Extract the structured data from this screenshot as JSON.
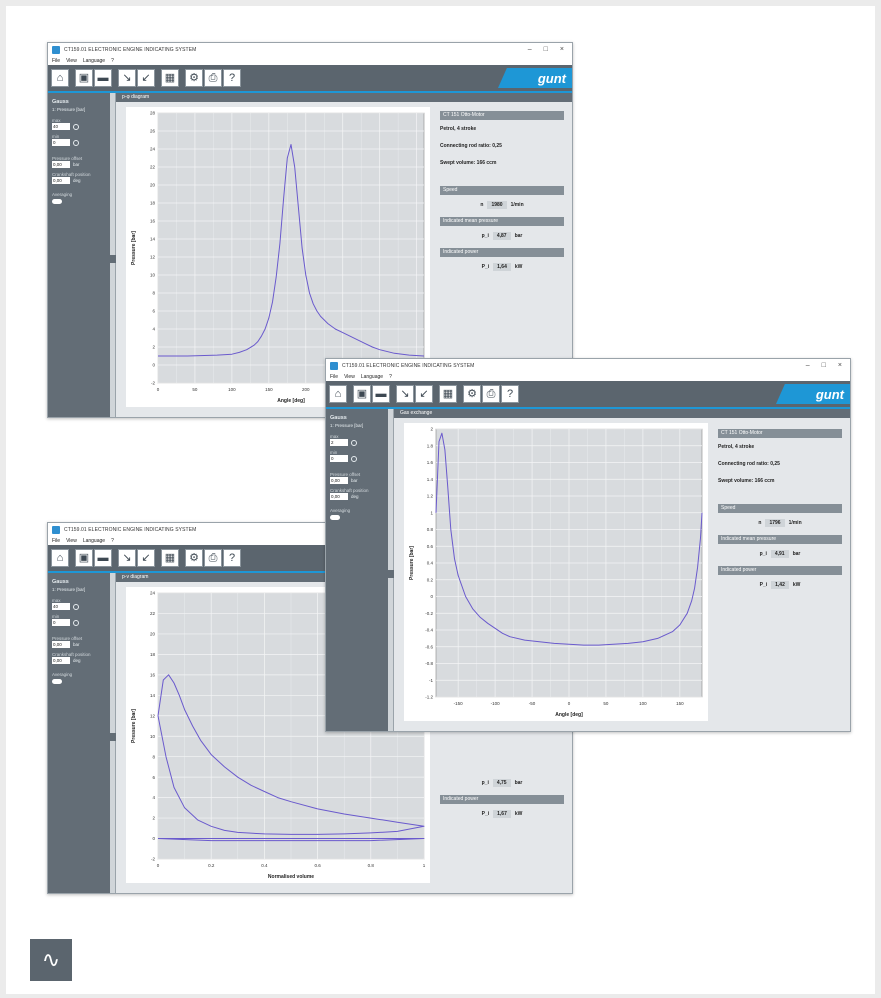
{
  "app": {
    "title": "CT159.01 ELECTRONIC ENGINE INDICATING SYSTEM",
    "menu": [
      "File",
      "View",
      "Language",
      "?"
    ],
    "logo": "gunt",
    "accent_color": "#1e97d6",
    "toolbar_color": "#5b656e",
    "trace_color": "#6a5acd"
  },
  "toolbar_icons": [
    "home-icon",
    "save-icon",
    "open-folder-icon",
    "pressure-sensor-icon",
    "tdc-sensor-icon",
    "grid-table-icon",
    "settings-icon",
    "print-icon",
    "help-icon"
  ],
  "windows": [
    {
      "id": "pphi",
      "section_title": "p-φ diagram",
      "sidebar": {
        "title": "Gauss",
        "channel": "1: Pressure [bar]",
        "min_label": "max",
        "min_value": "40",
        "max_label": "min",
        "max_value": "0",
        "offset_label": "Pressure offset",
        "offset_value": "0,00",
        "offset_unit": "bar",
        "crank_label": "Crankshaft position",
        "crank_value": "0,00",
        "crank_unit": "deg",
        "averaging_label": "Averaging"
      },
      "info": {
        "header": "CT 151 Otto-Motor",
        "engine": "Petrol, 4 stroke",
        "rod_ratio": "Connecting rod ratio: 0,25",
        "swept_volume": "Swept volume: 166 ccm",
        "speed_header": "Speed",
        "speed_symbol": "n",
        "speed_value": "1980",
        "speed_unit": "1/min",
        "imp_header": "Indicated mean pressure",
        "imp_symbol": "p_i",
        "imp_value": "4,87",
        "imp_unit": "bar",
        "power_header": "Indicated power",
        "power_symbol": "P_i",
        "power_value": "1,64",
        "power_unit": "kW"
      }
    },
    {
      "id": "gas",
      "section_title": "Gas exchange",
      "sidebar": {
        "title": "Gauss",
        "channel": "1: Pressure [bar]",
        "min_label": "max",
        "min_value": "2",
        "max_label": "min",
        "max_value": "0",
        "offset_label": "Pressure offset",
        "offset_value": "0,00",
        "offset_unit": "bar",
        "crank_label": "Crankshaft position",
        "crank_value": "0,00",
        "crank_unit": "deg",
        "averaging_label": "Averaging"
      },
      "info": {
        "header": "CT 151 Otto-Motor",
        "engine": "Petrol, 4 stroke",
        "rod_ratio": "Connecting rod ratio: 0,25",
        "swept_volume": "Swept volume: 166 ccm",
        "speed_header": "Speed",
        "speed_symbol": "n",
        "speed_value": "1796",
        "speed_unit": "1/min",
        "imp_header": "Indicated mean pressure",
        "imp_symbol": "p_i",
        "imp_value": "4,91",
        "imp_unit": "bar",
        "power_header": "Indicated power",
        "power_symbol": "P_i",
        "power_value": "1,42",
        "power_unit": "kW"
      }
    },
    {
      "id": "pv",
      "section_title": "p-v diagram",
      "sidebar": {
        "title": "Gauss",
        "channel": "1: Pressure [bar]",
        "min_label": "max",
        "min_value": "40",
        "max_label": "min",
        "max_value": "0",
        "offset_label": "Pressure offset",
        "offset_value": "0,00",
        "offset_unit": "bar",
        "crank_label": "Crankshaft position",
        "crank_value": "0,00",
        "crank_unit": "deg",
        "averaging_label": "Averaging"
      },
      "info": {
        "imp_symbol": "p_i",
        "imp_value": "4,75",
        "imp_unit": "bar",
        "power_header": "Indicated power",
        "power_symbol": "P_i",
        "power_value": "1,67",
        "power_unit": "kW"
      }
    }
  ],
  "chart_data": [
    {
      "type": "line",
      "title": "p-φ diagram",
      "xlabel": "Angle [deg]",
      "ylabel": "Pressure [bar]",
      "xlim": [
        0,
        360
      ],
      "ylim": [
        -2,
        28
      ],
      "grid": true,
      "series": [
        {
          "x": [
            0,
            40,
            80,
            100,
            110,
            120,
            130,
            135,
            140,
            145,
            150,
            155,
            160,
            165,
            170,
            175,
            180,
            185,
            190,
            195,
            200,
            205,
            210,
            215,
            220,
            230,
            240,
            250,
            260,
            270,
            280,
            290,
            300,
            320,
            340,
            360
          ],
          "y": [
            1.0,
            1.0,
            1.1,
            1.2,
            1.4,
            1.7,
            2.2,
            2.6,
            3.2,
            4.0,
            5.2,
            7.0,
            9.8,
            13.5,
            18.5,
            23.0,
            24.5,
            22.0,
            17.5,
            13.0,
            10.0,
            8.0,
            6.8,
            6.0,
            5.4,
            4.6,
            4.0,
            3.6,
            3.2,
            2.8,
            2.4,
            2.0,
            1.7,
            1.3,
            1.1,
            1.0
          ]
        }
      ]
    },
    {
      "type": "line",
      "title": "Gas exchange",
      "xlabel": "Angle [deg]",
      "ylabel": "Pressure [bar]",
      "xlim": [
        -180,
        180
      ],
      "ylim": [
        -1.2,
        2.0
      ],
      "grid": true,
      "series": [
        {
          "x": [
            -180,
            -176,
            -172,
            -168,
            -164,
            -160,
            -155,
            -150,
            -140,
            -130,
            -120,
            -110,
            -100,
            -90,
            -80,
            -60,
            -40,
            -20,
            0,
            20,
            40,
            60,
            80,
            100,
            120,
            140,
            150,
            160,
            166,
            170,
            174,
            178,
            180
          ],
          "y": [
            1.0,
            1.85,
            1.95,
            1.75,
            1.3,
            0.8,
            0.45,
            0.25,
            0.0,
            -0.15,
            -0.25,
            -0.32,
            -0.38,
            -0.44,
            -0.48,
            -0.52,
            -0.54,
            -0.56,
            -0.57,
            -0.58,
            -0.58,
            -0.57,
            -0.56,
            -0.54,
            -0.5,
            -0.42,
            -0.34,
            -0.2,
            -0.05,
            0.1,
            0.35,
            0.7,
            1.0
          ]
        }
      ]
    },
    {
      "type": "line",
      "title": "p-v diagram",
      "xlabel": "Normalised volume",
      "ylabel": "Pressure [bar]",
      "xlim": [
        0.0,
        1.0
      ],
      "ylim": [
        -2,
        24
      ],
      "grid": true,
      "series": [
        {
          "name": "",
          "x": [
            0.0,
            0.02,
            0.04,
            0.06,
            0.08,
            0.1,
            0.13,
            0.16,
            0.2,
            0.25,
            0.3,
            0.35,
            0.4,
            0.45,
            0.5,
            0.6,
            0.7,
            0.8,
            0.9,
            1.0,
            0.9,
            0.8,
            0.7,
            0.6,
            0.5,
            0.4,
            0.3,
            0.25,
            0.2,
            0.15,
            0.1,
            0.06,
            0.03,
            0.0
          ],
          "y": [
            12.0,
            15.5,
            16.0,
            15.2,
            14.0,
            12.6,
            11.0,
            9.6,
            8.2,
            7.0,
            6.0,
            5.2,
            4.6,
            4.0,
            3.6,
            2.9,
            2.4,
            2.0,
            1.6,
            1.2,
            0.7,
            0.55,
            0.45,
            0.4,
            0.4,
            0.45,
            0.6,
            0.8,
            1.2,
            1.8,
            3.0,
            5.0,
            8.0,
            12.0
          ]
        },
        {
          "name": "",
          "x": [
            0.0,
            0.2,
            0.4,
            0.6,
            0.8,
            1.0,
            0.8,
            0.6,
            0.4,
            0.2,
            0.0
          ],
          "y": [
            0.0,
            0.0,
            0.0,
            0.0,
            0.0,
            0.0,
            -0.2,
            -0.2,
            -0.2,
            -0.2,
            0.0
          ]
        }
      ]
    }
  ],
  "footer": {
    "icon": "sine-wave-icon"
  }
}
